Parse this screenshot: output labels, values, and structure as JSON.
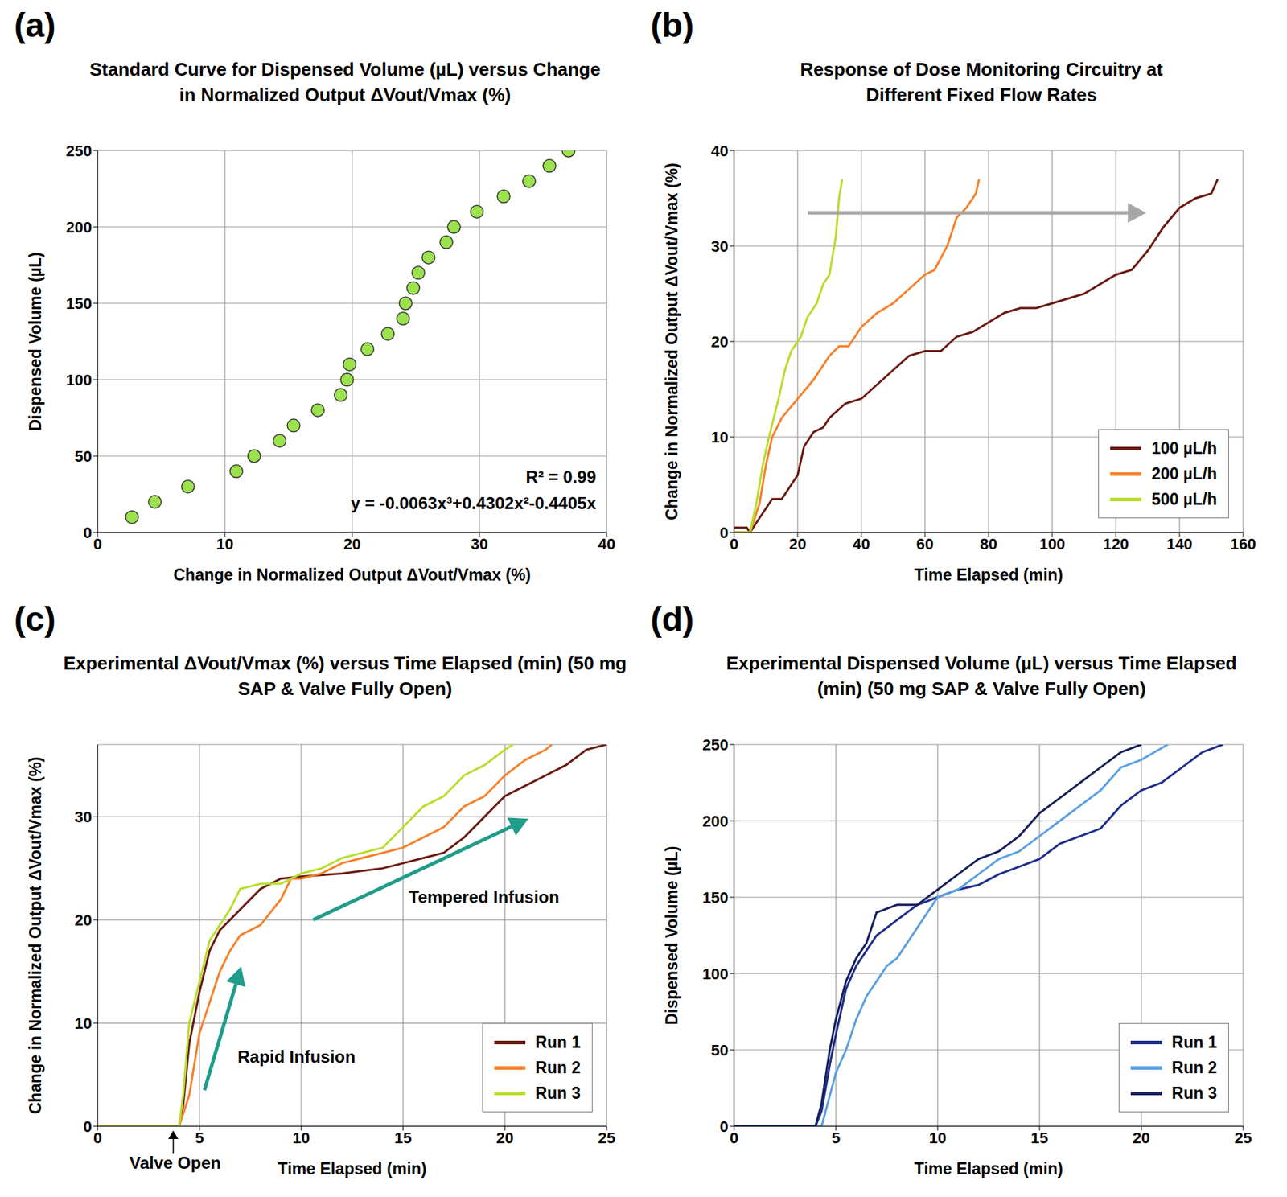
{
  "chart_data": [
    {
      "panel_label": "(a)",
      "type": "scatter",
      "title": "Standard Curve for Dispensed Volume (µL) versus Change in Normalized Output ΔVout/Vmax (%)",
      "x_label": "Change in Normalized Output ΔVout/Vmax (%)",
      "y_label": "Dispensed Volume (µL)",
      "xlim": [
        0,
        40
      ],
      "xticks": [
        0,
        10,
        20,
        30,
        40
      ],
      "ylim": [
        0,
        250
      ],
      "yticks": [
        0,
        50,
        100,
        150,
        200,
        250
      ],
      "grid": true,
      "marker": "circle",
      "color": "#9be24c",
      "x": [
        2.7,
        4.5,
        7.1,
        10.9,
        12.3,
        14.3,
        15.4,
        17.3,
        19.1,
        19.6,
        19.8,
        21.2,
        22.8,
        24.0,
        24.2,
        24.8,
        25.2,
        26.0,
        27.4,
        28.0,
        29.8,
        31.9,
        33.9,
        35.5,
        37.0
      ],
      "values": [
        10,
        20,
        30,
        40,
        50,
        60,
        70,
        80,
        90,
        100,
        110,
        120,
        130,
        140,
        150,
        160,
        170,
        180,
        190,
        200,
        210,
        220,
        230,
        240,
        250
      ],
      "annotations": [
        "R² = 0.99",
        "y = -0.0063x³+0.4302x²-0.4405x"
      ]
    },
    {
      "panel_label": "(b)",
      "type": "line",
      "title": "Response of Dose Monitoring Circuitry at Different Fixed Flow Rates",
      "x_label": "Time Elapsed (min)",
      "y_label": "Change in Normalized Output ΔVout/Vmax (%)",
      "xlim": [
        0,
        160
      ],
      "xticks": [
        0,
        20,
        40,
        60,
        80,
        100,
        120,
        140,
        160
      ],
      "ylim": [
        0,
        40
      ],
      "yticks": [
        0,
        10,
        20,
        30,
        40
      ],
      "grid": true,
      "legend": "lower right",
      "series": [
        {
          "name": "100 µL/h",
          "color": "#6b1a12",
          "x": [
            0,
            4,
            5,
            7,
            10,
            12,
            15,
            18,
            20,
            22,
            25,
            28,
            30,
            35,
            40,
            45,
            50,
            55,
            60,
            65,
            70,
            75,
            80,
            85,
            90,
            95,
            100,
            105,
            110,
            115,
            120,
            125,
            130,
            135,
            140,
            145,
            150,
            152
          ],
          "values": [
            0.5,
            0.5,
            0,
            1,
            2.5,
            3.5,
            3.5,
            5,
            6,
            9,
            10.5,
            11,
            12,
            13.5,
            14,
            15.5,
            17,
            18.5,
            19,
            19,
            20.5,
            21,
            22,
            23,
            23.5,
            23.5,
            24,
            24.5,
            25,
            26,
            27,
            27.5,
            29.5,
            32,
            34,
            35,
            35.5,
            37
          ]
        },
        {
          "name": "200 µL/h",
          "color": "#f6812b",
          "x": [
            0,
            5,
            8,
            10,
            12,
            15,
            20,
            25,
            30,
            33,
            36,
            40,
            45,
            50,
            55,
            60,
            63,
            67,
            70,
            73,
            76,
            77
          ],
          "values": [
            0,
            0,
            3,
            7,
            10,
            12,
            14,
            16,
            18.5,
            19.5,
            19.5,
            21.5,
            23,
            24,
            25.5,
            27,
            27.5,
            30,
            33,
            34,
            35.5,
            37
          ]
        },
        {
          "name": "500 µL/h",
          "color": "#b8dd2e",
          "x": [
            0,
            5,
            7,
            9,
            11,
            14,
            16,
            18,
            21,
            23,
            26,
            28,
            30,
            32,
            33,
            34
          ],
          "values": [
            0,
            0,
            3,
            7,
            10,
            14,
            17,
            19,
            20.5,
            22.5,
            24,
            26,
            27,
            31,
            35,
            37
          ]
        }
      ]
    },
    {
      "panel_label": "(c)",
      "type": "line",
      "title": "Experimental ΔVout/Vmax (%) versus Time Elapsed (min) (50 mg SAP & Valve Fully Open)",
      "x_label": "Time Elapsed (min)",
      "y_label": "Change in Normalized Output ΔVout/Vmax (%)",
      "xlim": [
        0,
        25
      ],
      "xticks": [
        0,
        5,
        10,
        15,
        20,
        25
      ],
      "ylim": [
        0,
        37
      ],
      "yticks": [
        0,
        10,
        20,
        30
      ],
      "grid": true,
      "legend": "lower right",
      "annotations": [
        "Rapid Infusion",
        "Tempered Infusion",
        "Valve Open"
      ],
      "series": [
        {
          "name": "Run 1",
          "color": "#6b1a12",
          "x": [
            0,
            4,
            4.2,
            4.5,
            5,
            5.5,
            6,
            6.5,
            7,
            7.5,
            8,
            9,
            10,
            12,
            14,
            15,
            16,
            17,
            18,
            19,
            20,
            21,
            22,
            23,
            24,
            25
          ],
          "values": [
            0,
            0,
            2,
            8,
            13,
            17,
            19,
            20,
            21,
            22,
            23,
            24,
            24.2,
            24.5,
            25,
            25.5,
            26,
            26.5,
            28,
            30,
            32,
            33,
            34,
            35,
            36.5,
            37
          ]
        },
        {
          "name": "Run 2",
          "color": "#f6812b",
          "x": [
            0,
            4,
            4.5,
            5,
            5.5,
            6,
            6.5,
            7,
            8,
            9,
            9.5,
            10,
            11,
            12,
            13,
            14,
            15,
            16,
            17,
            18,
            19,
            20,
            21,
            22,
            22.3
          ],
          "values": [
            0,
            0,
            3,
            9,
            12,
            15,
            17,
            18.5,
            19.5,
            22,
            24,
            24,
            24.5,
            25.5,
            26,
            26.5,
            27,
            28,
            29,
            31,
            32,
            34,
            35.5,
            36.5,
            37
          ]
        },
        {
          "name": "Run 3",
          "color": "#b8dd2e",
          "x": [
            0,
            4,
            4.2,
            4.5,
            5,
            5.5,
            6,
            6.5,
            7,
            8,
            9,
            10,
            11,
            12,
            13,
            14,
            15,
            16,
            17,
            18,
            19,
            20,
            20.4
          ],
          "values": [
            0,
            0,
            3,
            10,
            14,
            18,
            19.5,
            21,
            23,
            23.5,
            23.5,
            24.5,
            25,
            26,
            26.5,
            27,
            29,
            31,
            32,
            34,
            35,
            36.5,
            37
          ]
        }
      ]
    },
    {
      "panel_label": "(d)",
      "type": "line",
      "title": "Experimental Dispensed Volume (µL) versus Time Elapsed (min) (50 mg SAP & Valve Fully Open)",
      "x_label": "Time Elapsed (min)",
      "y_label": "Dispensed Volume (µL)",
      "xlim": [
        0,
        25
      ],
      "xticks": [
        0,
        5,
        10,
        15,
        20,
        25
      ],
      "ylim": [
        0,
        250
      ],
      "yticks": [
        0,
        50,
        100,
        150,
        200,
        250
      ],
      "grid": true,
      "legend": "lower right",
      "series": [
        {
          "name": "Run 1",
          "color": "#1f2e8c",
          "x": [
            0,
            4,
            4.3,
            4.7,
            5,
            5.5,
            6,
            6.5,
            7,
            7.5,
            8,
            9,
            10,
            11,
            12,
            13,
            14,
            15,
            16,
            17,
            18,
            19,
            20,
            21,
            22,
            23,
            24
          ],
          "values": [
            0,
            0,
            10,
            40,
            60,
            90,
            105,
            115,
            125,
            130,
            135,
            145,
            150,
            155,
            158,
            165,
            170,
            175,
            185,
            190,
            195,
            210,
            220,
            225,
            235,
            245,
            250
          ]
        },
        {
          "name": "Run 2",
          "color": "#5aa0e0",
          "x": [
            0,
            4.3,
            4.7,
            5,
            5.5,
            6,
            6.5,
            7,
            7.5,
            8,
            9,
            10,
            11,
            12,
            13,
            14,
            15,
            16,
            17,
            18,
            19,
            20,
            21.3
          ],
          "values": [
            0,
            0,
            20,
            35,
            50,
            70,
            85,
            95,
            105,
            110,
            130,
            150,
            155,
            165,
            175,
            180,
            190,
            200,
            210,
            220,
            235,
            240,
            250
          ]
        },
        {
          "name": "Run 3",
          "color": "#17205c",
          "x": [
            0,
            4,
            4.3,
            4.7,
            5,
            5.5,
            6,
            6.5,
            7,
            8,
            9,
            10,
            11,
            12,
            13,
            14,
            15,
            16,
            17,
            18,
            19,
            20
          ],
          "values": [
            0,
            0,
            15,
            50,
            70,
            95,
            110,
            120,
            140,
            145,
            145,
            155,
            165,
            175,
            180,
            190,
            205,
            215,
            225,
            235,
            245,
            250
          ]
        }
      ]
    }
  ]
}
